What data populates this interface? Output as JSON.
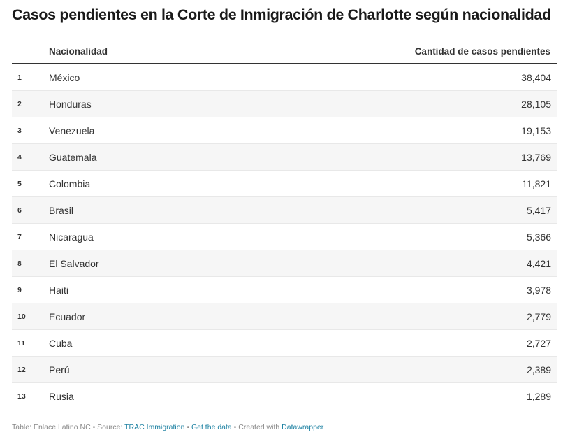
{
  "title": "Casos pendientes en la Corte de Inmigración de Charlotte según nacionalidad",
  "table": {
    "headers": {
      "rank": "",
      "nationality": "Nacionalidad",
      "count": "Cantidad de casos pendientes"
    },
    "rows": [
      {
        "rank": "1",
        "nationality": "México",
        "count": "38,404"
      },
      {
        "rank": "2",
        "nationality": "Honduras",
        "count": "28,105"
      },
      {
        "rank": "3",
        "nationality": "Venezuela",
        "count": "19,153"
      },
      {
        "rank": "4",
        "nationality": "Guatemala",
        "count": "13,769"
      },
      {
        "rank": "5",
        "nationality": "Colombia",
        "count": "11,821"
      },
      {
        "rank": "6",
        "nationality": "Brasil",
        "count": "5,417"
      },
      {
        "rank": "7",
        "nationality": "Nicaragua",
        "count": "5,366"
      },
      {
        "rank": "8",
        "nationality": "El Salvador",
        "count": "4,421"
      },
      {
        "rank": "9",
        "nationality": "Haiti",
        "count": "3,978"
      },
      {
        "rank": "10",
        "nationality": "Ecuador",
        "count": "2,779"
      },
      {
        "rank": "11",
        "nationality": "Cuba",
        "count": "2,727"
      },
      {
        "rank": "12",
        "nationality": "Perú",
        "count": "2,389"
      },
      {
        "rank": "13",
        "nationality": "Rusia",
        "count": "1,289"
      }
    ]
  },
  "footer": {
    "table_credit": "Table: Enlace Latino NC",
    "sep1": " • ",
    "source_label": "Source: ",
    "source_link": "TRAC Immigration",
    "sep2": " • ",
    "get_data_link": "Get the data",
    "sep3": " • ",
    "created_label": "Created with ",
    "datawrapper_link": "Datawrapper"
  },
  "colors": {
    "text": "#333333",
    "row_alt_bg": "#f6f6f6",
    "header_border": "#333333",
    "row_border": "#e8e8e8",
    "footer_text": "#888888",
    "link": "#1d81a2"
  }
}
